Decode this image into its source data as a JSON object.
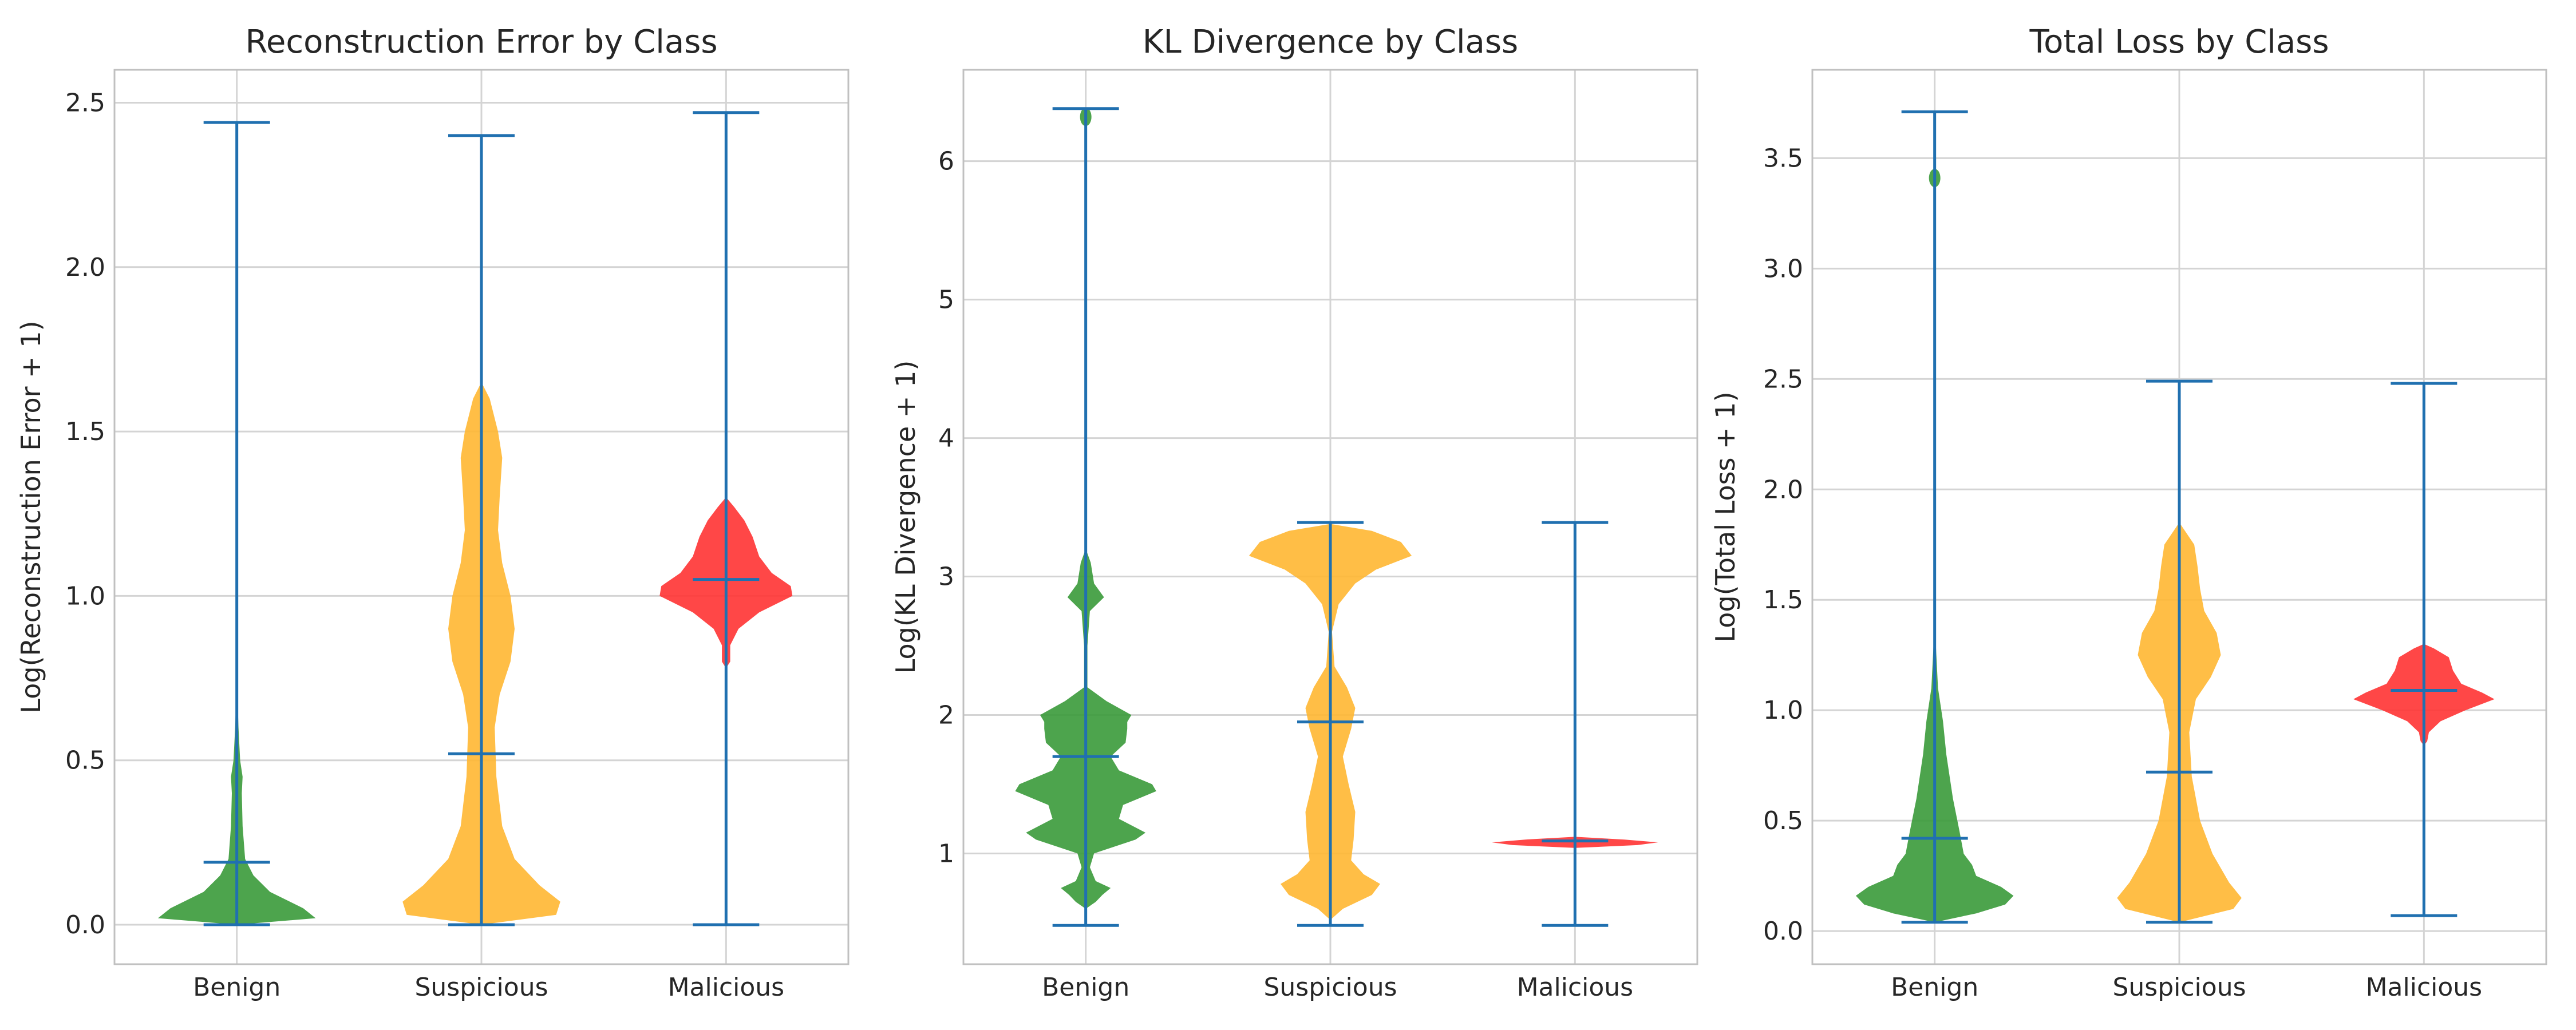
{
  "colors": {
    "Benign": "#3a9a3a",
    "Suspicious": "#ffb732",
    "Malicious": "#ff3333",
    "whisker": "#2070b0",
    "grid": "#d4d4d4",
    "frame": "#c0c0c0"
  },
  "chart_data": [
    {
      "type": "violin",
      "title": "Reconstruction Error by Class",
      "ylabel": "Log(Reconstruction Error + 1)",
      "xlabel": "",
      "categories": [
        "Benign",
        "Suspicious",
        "Malicious"
      ],
      "ylim": [
        -0.12,
        2.6
      ],
      "yticks": [
        0.0,
        0.5,
        1.0,
        1.5,
        2.0,
        2.5
      ],
      "grid": true,
      "series": [
        {
          "category": "Benign",
          "min": 0.0,
          "max": 2.44,
          "median": 0.19,
          "density": [
            [
              0.0,
              0.0
            ],
            [
              0.02,
              0.95
            ],
            [
              0.05,
              0.8
            ],
            [
              0.1,
              0.4
            ],
            [
              0.15,
              0.2
            ],
            [
              0.2,
              0.1
            ],
            [
              0.3,
              0.07
            ],
            [
              0.4,
              0.06
            ],
            [
              0.45,
              0.07
            ],
            [
              0.5,
              0.04
            ],
            [
              0.6,
              0.02
            ],
            [
              0.75,
              0.0
            ]
          ]
        },
        {
          "category": "Suspicious",
          "min": 0.0,
          "max": 2.4,
          "median": 0.52,
          "density": [
            [
              0.0,
              0.0
            ],
            [
              0.03,
              0.9
            ],
            [
              0.07,
              0.95
            ],
            [
              0.12,
              0.7
            ],
            [
              0.2,
              0.4
            ],
            [
              0.3,
              0.25
            ],
            [
              0.45,
              0.18
            ],
            [
              0.6,
              0.16
            ],
            [
              0.7,
              0.22
            ],
            [
              0.8,
              0.35
            ],
            [
              0.9,
              0.4
            ],
            [
              1.0,
              0.35
            ],
            [
              1.1,
              0.25
            ],
            [
              1.2,
              0.2
            ],
            [
              1.3,
              0.22
            ],
            [
              1.42,
              0.25
            ],
            [
              1.5,
              0.2
            ],
            [
              1.6,
              0.1
            ],
            [
              1.65,
              0.0
            ]
          ]
        },
        {
          "category": "Malicious",
          "min": 0.0,
          "max": 2.47,
          "median": 1.05,
          "density": [
            [
              0.78,
              0.0
            ],
            [
              0.8,
              0.05
            ],
            [
              0.85,
              0.05
            ],
            [
              0.9,
              0.15
            ],
            [
              0.95,
              0.4
            ],
            [
              1.0,
              0.8
            ],
            [
              1.03,
              0.78
            ],
            [
              1.07,
              0.55
            ],
            [
              1.12,
              0.4
            ],
            [
              1.18,
              0.32
            ],
            [
              1.23,
              0.22
            ],
            [
              1.27,
              0.1
            ],
            [
              1.3,
              0.0
            ]
          ]
        }
      ]
    },
    {
      "type": "violin",
      "title": "KL Divergence by Class",
      "ylabel": "Log(KL Divergence + 1)",
      "xlabel": "",
      "categories": [
        "Benign",
        "Suspicious",
        "Malicious"
      ],
      "ylim": [
        0.2,
        6.66
      ],
      "yticks": [
        1,
        2,
        3,
        4,
        5,
        6
      ],
      "grid": true,
      "series": [
        {
          "category": "Benign",
          "min": 0.48,
          "max": 6.38,
          "median": 1.7,
          "density": [
            [
              0.6,
              0.0
            ],
            [
              0.65,
              0.12
            ],
            [
              0.7,
              0.2
            ],
            [
              0.75,
              0.3
            ],
            [
              0.8,
              0.12
            ],
            [
              0.9,
              0.05
            ],
            [
              1.0,
              0.1
            ],
            [
              1.1,
              0.6
            ],
            [
              1.15,
              0.72
            ],
            [
              1.25,
              0.4
            ],
            [
              1.35,
              0.45
            ],
            [
              1.45,
              0.85
            ],
            [
              1.5,
              0.8
            ],
            [
              1.6,
              0.4
            ],
            [
              1.7,
              0.3
            ],
            [
              1.8,
              0.48
            ],
            [
              1.9,
              0.5
            ],
            [
              1.95,
              0.5
            ],
            [
              2.0,
              0.55
            ],
            [
              2.1,
              0.25
            ],
            [
              2.2,
              0.02
            ],
            [
              2.3,
              0.02
            ],
            [
              2.5,
              0.02
            ],
            [
              2.75,
              0.05
            ],
            [
              2.85,
              0.22
            ],
            [
              2.95,
              0.1
            ],
            [
              3.1,
              0.06
            ],
            [
              3.2,
              0.0
            ]
          ],
          "outliers": [
            6.32
          ]
        },
        {
          "category": "Suspicious",
          "min": 0.48,
          "max": 3.39,
          "median": 1.95,
          "density": [
            [
              0.52,
              0.0
            ],
            [
              0.6,
              0.15
            ],
            [
              0.7,
              0.5
            ],
            [
              0.78,
              0.6
            ],
            [
              0.85,
              0.4
            ],
            [
              0.95,
              0.25
            ],
            [
              1.1,
              0.28
            ],
            [
              1.3,
              0.3
            ],
            [
              1.5,
              0.22
            ],
            [
              1.7,
              0.15
            ],
            [
              1.9,
              0.25
            ],
            [
              2.05,
              0.3
            ],
            [
              2.2,
              0.2
            ],
            [
              2.35,
              0.05
            ],
            [
              2.6,
              0.02
            ],
            [
              2.8,
              0.1
            ],
            [
              2.95,
              0.3
            ],
            [
              3.05,
              0.55
            ],
            [
              3.15,
              0.98
            ],
            [
              3.25,
              0.85
            ],
            [
              3.33,
              0.5
            ],
            [
              3.38,
              0.0
            ]
          ]
        },
        {
          "category": "Malicious",
          "min": 0.48,
          "max": 3.39,
          "median": 1.09,
          "density": [
            [
              1.04,
              0.0
            ],
            [
              1.06,
              0.75
            ],
            [
              1.08,
              1.0
            ],
            [
              1.1,
              0.6
            ],
            [
              1.12,
              0.0
            ]
          ]
        }
      ]
    },
    {
      "type": "violin",
      "title": "Total Loss by Class",
      "ylabel": "Log(Total Loss + 1)",
      "xlabel": "",
      "categories": [
        "Benign",
        "Suspicious",
        "Malicious"
      ],
      "ylim": [
        -0.15,
        3.9
      ],
      "yticks": [
        0.0,
        0.5,
        1.0,
        1.5,
        2.0,
        2.5,
        3.0,
        3.5
      ],
      "grid": true,
      "series": [
        {
          "category": "Benign",
          "min": 0.04,
          "max": 3.71,
          "median": 0.42,
          "density": [
            [
              0.04,
              0.0
            ],
            [
              0.08,
              0.5
            ],
            [
              0.12,
              0.85
            ],
            [
              0.16,
              0.95
            ],
            [
              0.2,
              0.8
            ],
            [
              0.25,
              0.5
            ],
            [
              0.3,
              0.45
            ],
            [
              0.35,
              0.35
            ],
            [
              0.45,
              0.3
            ],
            [
              0.6,
              0.22
            ],
            [
              0.8,
              0.14
            ],
            [
              0.95,
              0.1
            ],
            [
              1.1,
              0.04
            ],
            [
              1.25,
              0.02
            ],
            [
              1.4,
              0.0
            ]
          ],
          "outliers": [
            3.41
          ]
        },
        {
          "category": "Suspicious",
          "min": 0.04,
          "max": 2.49,
          "median": 0.72,
          "density": [
            [
              0.04,
              0.0
            ],
            [
              0.1,
              0.65
            ],
            [
              0.15,
              0.75
            ],
            [
              0.22,
              0.6
            ],
            [
              0.35,
              0.4
            ],
            [
              0.5,
              0.25
            ],
            [
              0.7,
              0.15
            ],
            [
              0.9,
              0.12
            ],
            [
              1.05,
              0.2
            ],
            [
              1.15,
              0.38
            ],
            [
              1.25,
              0.5
            ],
            [
              1.35,
              0.45
            ],
            [
              1.45,
              0.3
            ],
            [
              1.55,
              0.25
            ],
            [
              1.65,
              0.22
            ],
            [
              1.75,
              0.18
            ],
            [
              1.85,
              0.0
            ]
          ]
        },
        {
          "category": "Malicious",
          "min": 0.07,
          "max": 2.48,
          "median": 1.09,
          "density": [
            [
              0.84,
              0.0
            ],
            [
              0.86,
              0.04
            ],
            [
              0.9,
              0.06
            ],
            [
              0.95,
              0.2
            ],
            [
              1.0,
              0.5
            ],
            [
              1.05,
              0.85
            ],
            [
              1.08,
              0.7
            ],
            [
              1.12,
              0.45
            ],
            [
              1.18,
              0.35
            ],
            [
              1.24,
              0.3
            ],
            [
              1.28,
              0.12
            ],
            [
              1.3,
              0.0
            ]
          ]
        }
      ]
    }
  ]
}
